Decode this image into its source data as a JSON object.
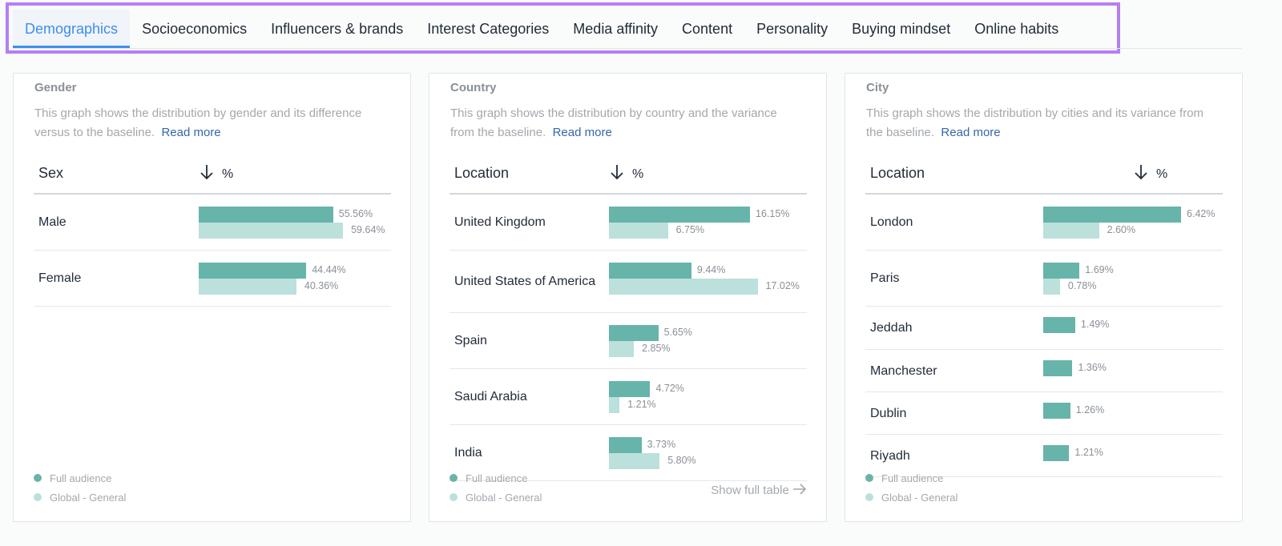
{
  "tabs": [
    {
      "label": "Demographics",
      "active": true
    },
    {
      "label": "Socioeconomics"
    },
    {
      "label": "Influencers & brands"
    },
    {
      "label": "Interest Categories"
    },
    {
      "label": "Media affinity"
    },
    {
      "label": "Content"
    },
    {
      "label": "Personality"
    },
    {
      "label": "Buying mindset"
    },
    {
      "label": "Online habits"
    }
  ],
  "colors": {
    "full_audience": "#67b4aa",
    "global_general": "#bce0dc",
    "active_tab": "#3d8ef0",
    "highlight_border": "#b57ff2"
  },
  "legend": {
    "full": "Full audience",
    "global": "Global - General"
  },
  "cards": [
    {
      "title": "Gender",
      "desc": "This graph shows the distribution by gender and its difference versus to the baseline.",
      "read_more": "Read more",
      "col_label": "Sex",
      "col_value": "%",
      "sort_icon": "arrow-down-icon",
      "rows": [
        {
          "name": "Male",
          "full": 55.56,
          "full_label": "55.56%",
          "global": 59.64,
          "global_label": "59.64%"
        },
        {
          "name": "Female",
          "full": 44.44,
          "full_label": "44.44%",
          "global": 40.36,
          "global_label": "40.36%"
        }
      ]
    },
    {
      "title": "Country",
      "desc": "This graph shows the distribution by country and the variance from the baseline.",
      "read_more": "Read more",
      "col_label": "Location",
      "col_value": "%",
      "sort_icon": "arrow-down-icon",
      "show_full": "Show full table",
      "rows": [
        {
          "name": "United Kingdom",
          "full": 16.15,
          "full_label": "16.15%",
          "global": 6.75,
          "global_label": "6.75%"
        },
        {
          "name": "United States of America",
          "full": 9.44,
          "full_label": "9.44%",
          "global": 17.02,
          "global_label": "17.02%"
        },
        {
          "name": "Spain",
          "full": 5.65,
          "full_label": "5.65%",
          "global": 2.85,
          "global_label": "2.85%"
        },
        {
          "name": "Saudi Arabia",
          "full": 4.72,
          "full_label": "4.72%",
          "global": 1.21,
          "global_label": "1.21%"
        },
        {
          "name": "India",
          "full": 3.73,
          "full_label": "3.73%",
          "global": 5.8,
          "global_label": "5.80%"
        }
      ]
    },
    {
      "title": "City",
      "desc": "This graph shows the distribution by cities and its variance from the baseline.",
      "read_more": "Read more",
      "col_label": "Location",
      "col_value": "%",
      "sort_icon": "arrow-down-icon",
      "rows": [
        {
          "name": "London",
          "full": 6.42,
          "full_label": "6.42%",
          "global": 2.6,
          "global_label": "2.60%"
        },
        {
          "name": "Paris",
          "full": 1.69,
          "full_label": "1.69%",
          "global": 0.78,
          "global_label": "0.78%"
        },
        {
          "name": "Jeddah",
          "full": 1.49,
          "full_label": "1.49%"
        },
        {
          "name": "Manchester",
          "full": 1.36,
          "full_label": "1.36%"
        },
        {
          "name": "Dublin",
          "full": 1.26,
          "full_label": "1.26%"
        },
        {
          "name": "Riyadh",
          "full": 1.21,
          "full_label": "1.21%"
        }
      ]
    }
  ]
}
